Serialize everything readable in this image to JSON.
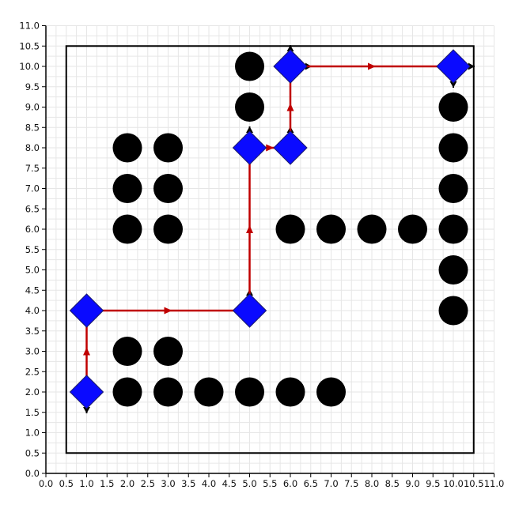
{
  "chart_data": {
    "type": "scatter",
    "title": "",
    "xlabel": "",
    "ylabel": "",
    "xlim": [
      0,
      11
    ],
    "ylim": [
      0,
      11
    ],
    "grid": true,
    "xticks": [
      "0.0",
      "0.5",
      "1.0",
      "1.5",
      "2.0",
      "2.5",
      "3.0",
      "3.5",
      "4.0",
      "4.5",
      "5.0",
      "5.5",
      "6.0",
      "6.5",
      "7.0",
      "7.5",
      "8.0",
      "8.5",
      "9.0",
      "9.5",
      "10.0",
      "10.5",
      "11.0"
    ],
    "yticks": [
      "0.0",
      "0.5",
      "1.0",
      "1.5",
      "2.0",
      "2.5",
      "3.0",
      "3.5",
      "4.0",
      "4.5",
      "5.0",
      "5.5",
      "6.0",
      "6.5",
      "7.0",
      "7.5",
      "8.0",
      "8.5",
      "9.0",
      "9.5",
      "10.0",
      "10.5",
      "11.0"
    ],
    "boundary": {
      "x": [
        0.5,
        10.5
      ],
      "y": [
        0.5,
        10.5
      ]
    },
    "obstacles": [
      [
        2,
        8
      ],
      [
        3,
        8
      ],
      [
        2,
        7
      ],
      [
        3,
        7
      ],
      [
        2,
        6
      ],
      [
        3,
        6
      ],
      [
        5,
        10
      ],
      [
        5,
        9
      ],
      [
        6,
        6
      ],
      [
        7,
        6
      ],
      [
        8,
        6
      ],
      [
        9,
        6
      ],
      [
        10,
        6
      ],
      [
        10,
        9
      ],
      [
        10,
        8
      ],
      [
        10,
        7
      ],
      [
        10,
        5
      ],
      [
        10,
        4
      ],
      [
        2,
        3
      ],
      [
        3,
        3
      ],
      [
        2,
        2
      ],
      [
        3,
        2
      ],
      [
        4,
        2
      ],
      [
        5,
        2
      ],
      [
        6,
        2
      ],
      [
        7,
        2
      ]
    ],
    "waypoints": [
      [
        1,
        2
      ],
      [
        1,
        4
      ],
      [
        5,
        4
      ],
      [
        5,
        8
      ],
      [
        6,
        8
      ],
      [
        6,
        10
      ],
      [
        10,
        10
      ]
    ],
    "orientation_arrows": [
      {
        "at": [
          1,
          2
        ],
        "dir": "down"
      },
      {
        "at": [
          5,
          8
        ],
        "dir": "up"
      },
      {
        "at": [
          6,
          8
        ],
        "dir": "up"
      },
      {
        "at": [
          6,
          10
        ],
        "dir": "up"
      },
      {
        "at": [
          6,
          10
        ],
        "dir": "right"
      },
      {
        "at": [
          10,
          10
        ],
        "dir": "right"
      },
      {
        "at": [
          10,
          10
        ],
        "dir": "down"
      },
      {
        "at": [
          5,
          4
        ],
        "dir": "up"
      }
    ],
    "colors": {
      "obstacle": "#000000",
      "waypoint": "#0a0aff",
      "path": "#c00000",
      "boundary": "#000000",
      "grid": "#e6e6e6"
    }
  }
}
